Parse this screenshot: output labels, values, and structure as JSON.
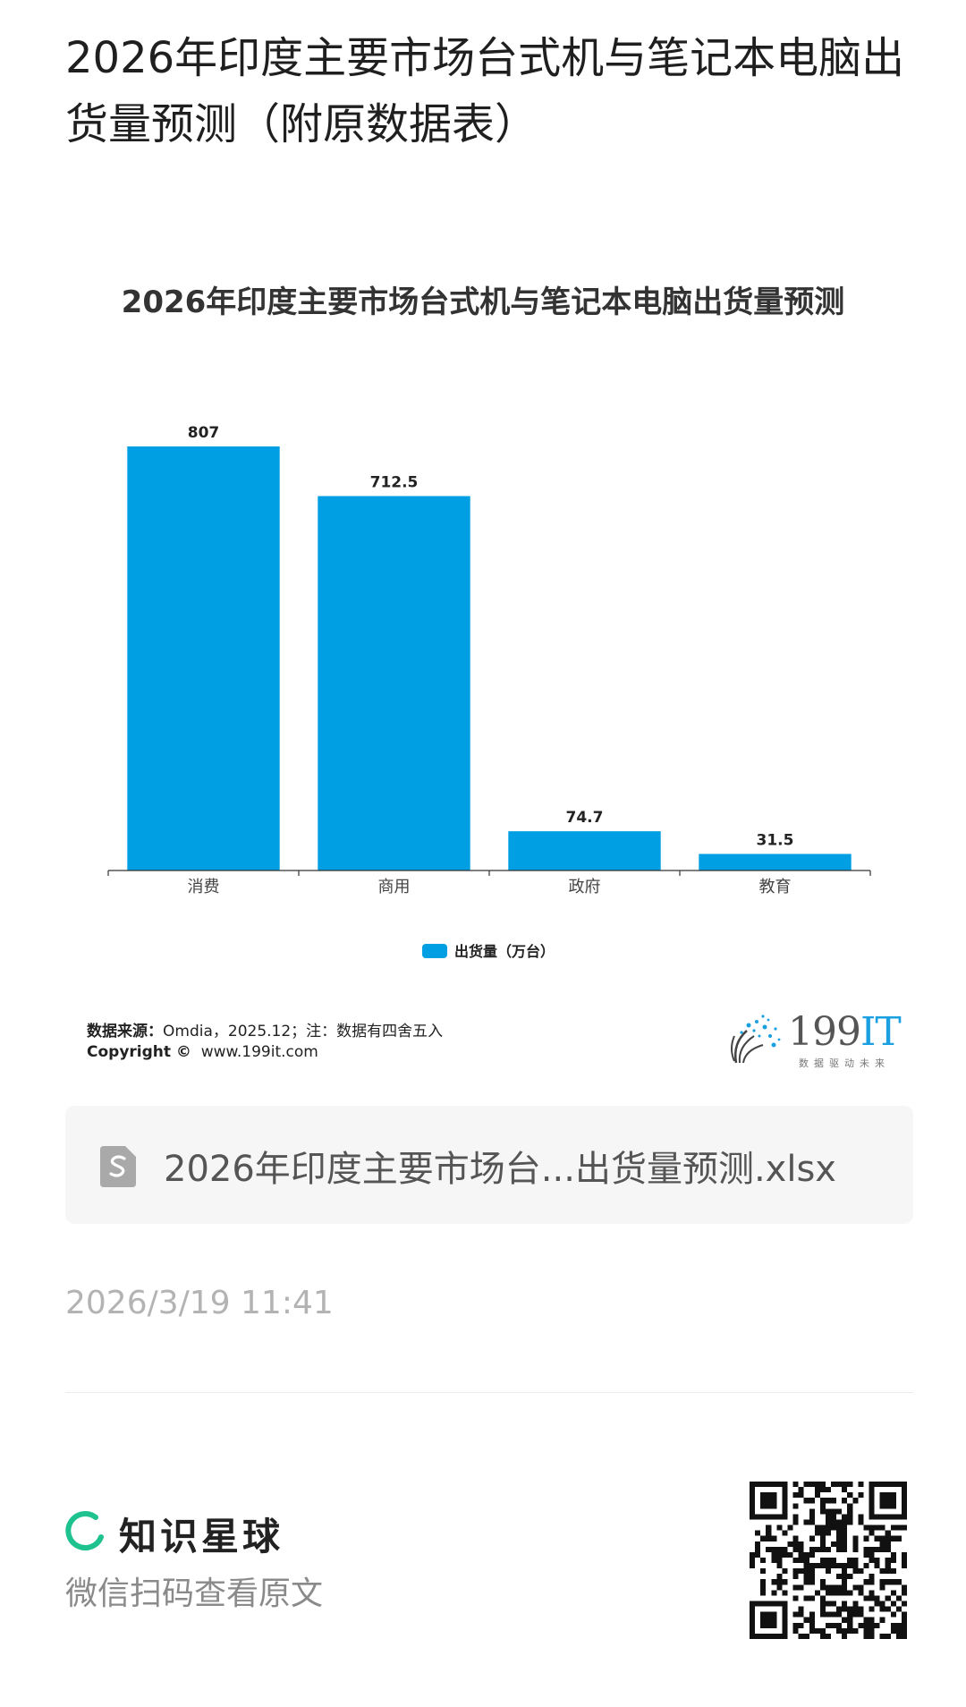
{
  "post": {
    "title": "2026年印度主要市场台式机与笔记本电脑出货量预测（附原数据表）",
    "timestamp": "2026/3/19 11:41"
  },
  "chart_data": {
    "type": "bar",
    "title": "2026年印度主要市场台式机与笔记本电脑出货量预测",
    "categories": [
      "消费",
      "商用",
      "政府",
      "教育"
    ],
    "series": [
      {
        "name": "出货量（万台）",
        "values": [
          807,
          712.5,
          74.7,
          31.5
        ]
      }
    ],
    "data_labels": [
      "807",
      "712.5",
      "74.7",
      "31.5"
    ],
    "ylim": [
      0,
      807
    ],
    "grid": false,
    "legend_position": "bottom-center",
    "bar_color": "#009fe3"
  },
  "chart_footer": {
    "source_label": "数据来源：",
    "source_text": "Omdia，2025.12；注：数据有四舍五入",
    "copyright_label": "Copyright ©",
    "copyright_text": "www.199it.com"
  },
  "brand": {
    "name_digits": "199",
    "name_letters": "IT",
    "slogan": "数据驱动未来",
    "accent": "#1aa0e0"
  },
  "attachment": {
    "icon": "file-sheet-icon",
    "file_name": "2026年印度主要市场台...出货量预测.xlsx"
  },
  "footer": {
    "app_name": "知识星球",
    "scan_hint": "微信扫码查看原文",
    "accent": "#1ec28e"
  }
}
